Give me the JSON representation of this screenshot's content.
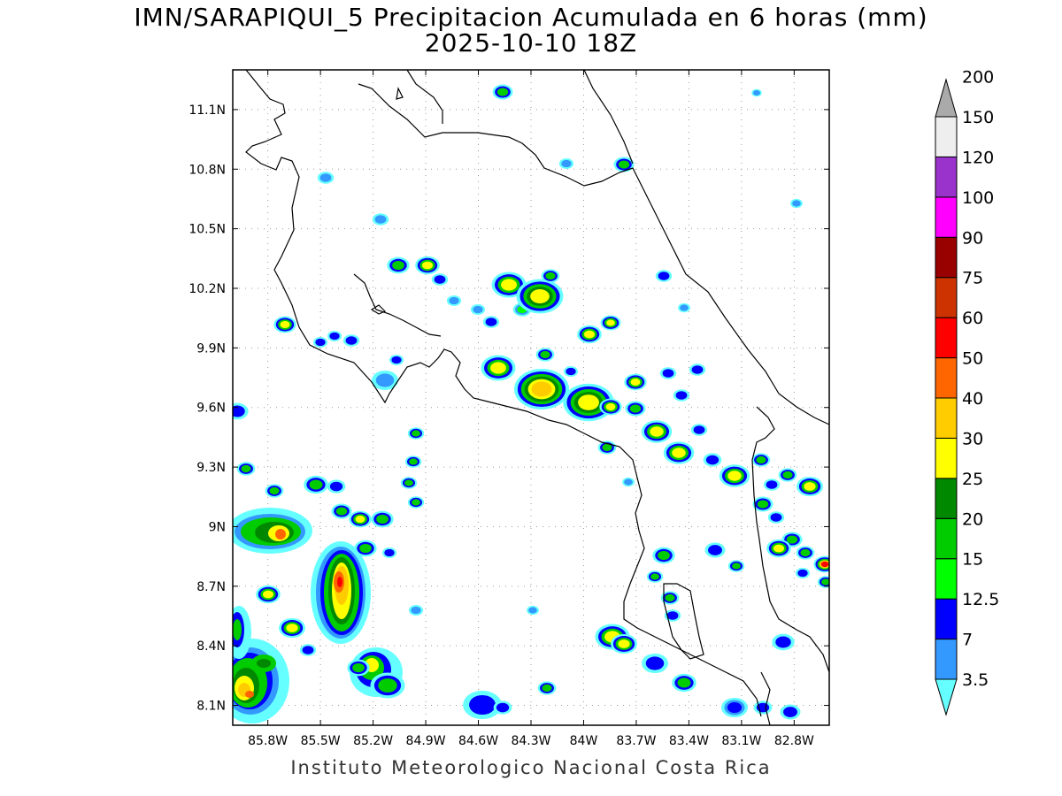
{
  "title": "IMN/SARAPIQUI_5 Precipitacion Acumulada en 6 horas (mm)",
  "subtitle": "2025-10-10 18Z",
  "footer": "Instituto Meteorologico Nacional Costa Rica",
  "map": {
    "lon_range": [
      -86.0,
      -82.6
    ],
    "lat_range": [
      8.0,
      11.3
    ],
    "lon_ticks": [
      "85.8W",
      "85.5W",
      "85.2W",
      "84.9W",
      "84.6W",
      "84.3W",
      "84W",
      "83.7W",
      "83.4W",
      "83.1W",
      "82.8W"
    ],
    "lon_tick_values": [
      -85.8,
      -85.5,
      -85.2,
      -84.9,
      -84.6,
      -84.3,
      -84.0,
      -83.7,
      -83.4,
      -83.1,
      -82.8
    ],
    "lat_ticks": [
      "8.1N",
      "8.4N",
      "8.7N",
      "9N",
      "9.3N",
      "9.6N",
      "9.9N",
      "10.2N",
      "10.5N",
      "10.8N",
      "11.1N"
    ],
    "lat_tick_values": [
      8.1,
      8.4,
      8.7,
      9.0,
      9.3,
      9.6,
      9.9,
      10.2,
      10.5,
      10.8,
      11.1
    ],
    "grid": true
  },
  "colorbar": {
    "labels": [
      "3.5",
      "7",
      "12.5",
      "15",
      "20",
      "25",
      "30",
      "40",
      "50",
      "60",
      "75",
      "90",
      "100",
      "120",
      "150",
      "200"
    ],
    "colors": [
      "#66ffff",
      "#3399ff",
      "#0000ff",
      "#00ff00",
      "#00cc00",
      "#008800",
      "#ffff00",
      "#ffcc00",
      "#ff6600",
      "#ff0000",
      "#cc3300",
      "#990000",
      "#ff00ff",
      "#9933cc",
      "#eeeeee",
      "#aaaaaa"
    ]
  }
}
